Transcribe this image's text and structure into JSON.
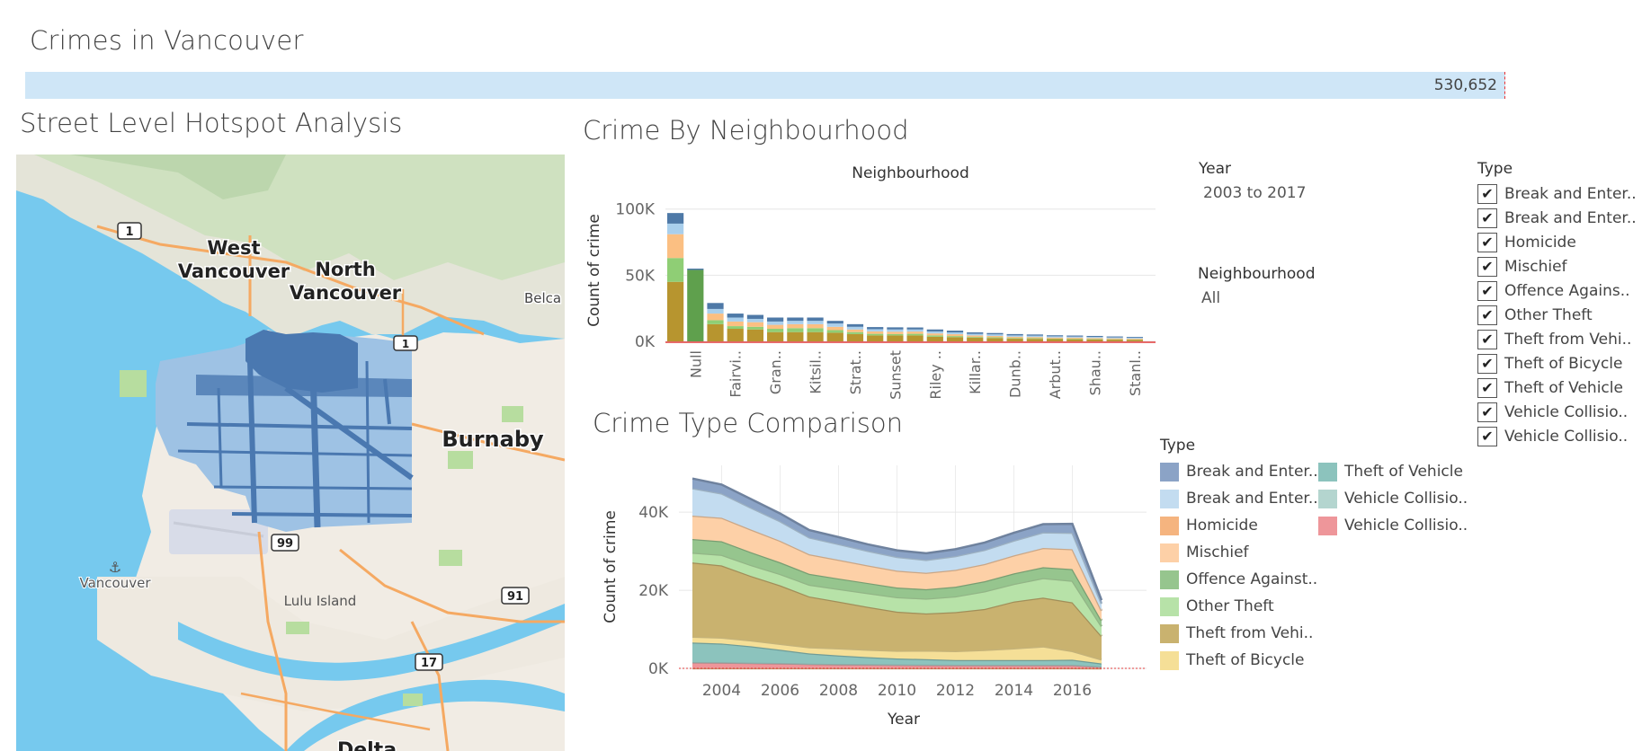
{
  "dashboard": {
    "title": "Crimes in Vancouver",
    "total": "530,652"
  },
  "map_panel": {
    "title": "Street Level Hotspot Analysis",
    "labels": {
      "west_vancouver_1": "West",
      "west_vancouver_2": "Vancouver",
      "north_vancouver_1": "North",
      "north_vancouver_2": "Vancouver",
      "burnaby": "Burnaby",
      "belcarra": "Belca",
      "vancouver_airport": "Vancouver",
      "lulu_island": "Lulu Island",
      "delta": "Delta"
    },
    "highway_shields": [
      "1",
      "99",
      "91",
      "17",
      "1"
    ]
  },
  "colors": {
    "break_and_enter_commercial": "#8ba3c6",
    "break_and_enter_residential": "#c3dcf0",
    "homicide": "#f5b47f",
    "mischief": "#fdd0a7",
    "offence_against_person": "#96c58e",
    "other_theft": "#b7e2a8",
    "theft_from_vehicle": "#c9b26f",
    "theft_of_bicycle": "#f5df97",
    "theft_of_vehicle": "#8cc3bd",
    "vehicle_collision_fatal": "#b4d5cf",
    "vehicle_collision_injury": "#ee969a",
    "water": "#76c9ee",
    "land": "#f1ece4",
    "crime_points": "#4a78b0"
  },
  "filters": {
    "year": {
      "label": "Year",
      "value": "2003 to 2017"
    },
    "neighbourhood": {
      "label": "Neighbourhood",
      "value": "All"
    },
    "type": {
      "label": "Type",
      "items": [
        "Break and Enter..",
        "Break and Enter..",
        "Homicide",
        "Mischief",
        "Offence Agains..",
        "Other Theft",
        "Theft from Vehi..",
        "Theft of Bicycle",
        "Theft of Vehicle",
        "Vehicle Collisio..",
        "Vehicle Collisio.."
      ]
    }
  },
  "legend": {
    "label": "Type",
    "items": [
      "Break and Enter..",
      "Break and Enter..",
      "Homicide",
      "Mischief",
      "Offence Against..",
      "Other Theft",
      "Theft from Vehi..",
      "Theft of Bicycle",
      "Theft of Vehicle",
      "Vehicle Collisio..",
      "Vehicle Collisio.."
    ]
  },
  "chart_data": [
    {
      "type": "bar",
      "stacked": true,
      "title": "Crime By Neighbourhood",
      "subtitle": "Neighbourhood",
      "ylabel": "Count of crime",
      "ylim": [
        0,
        110000
      ],
      "yticks": [
        "100K",
        "50K",
        "0K"
      ],
      "ytick_values": [
        100000,
        50000,
        0
      ],
      "grid": true,
      "categories": [
        "",
        "Null",
        "",
        "Fairvi..",
        "",
        "Gran..",
        "",
        "Kitsil..",
        "",
        "Strat..",
        "",
        "Sunset",
        "",
        "Riley ..",
        "",
        "Killar..",
        "",
        "Dunb..",
        "",
        "Arbut..",
        "",
        "Shau..",
        "",
        "Stanl.."
      ],
      "series": [
        {
          "name": "Theft from Vehi..",
          "color": "#b7952f",
          "values": [
            45000,
            0,
            13000,
            9500,
            9000,
            7000,
            7000,
            7000,
            6500,
            5500,
            4500,
            4500,
            4500,
            3500,
            3200,
            2700,
            2500,
            2000,
            1900,
            1700,
            1600,
            1500,
            1300,
            1200
          ]
        },
        {
          "name": "Offence Against..",
          "color": "#5fa04d",
          "values": [
            0,
            54000,
            0,
            0,
            0,
            0,
            0,
            0,
            0,
            0,
            0,
            0,
            0,
            0,
            0,
            0,
            0,
            0,
            0,
            0,
            0,
            0,
            0,
            0
          ]
        },
        {
          "name": "Other Theft",
          "color": "#8fce75",
          "values": [
            18000,
            0,
            3000,
            2000,
            2000,
            2500,
            3000,
            3000,
            2000,
            1500,
            1200,
            1000,
            1200,
            1000,
            800,
            600,
            600,
            500,
            500,
            400,
            400,
            400,
            300,
            300
          ]
        },
        {
          "name": "Mischief",
          "color": "#fbbf82",
          "values": [
            18000,
            0,
            5000,
            3500,
            3500,
            3000,
            3000,
            3000,
            2500,
            2000,
            1800,
            1800,
            1700,
            1500,
            1400,
            1200,
            1000,
            1000,
            900,
            800,
            800,
            700,
            700,
            600
          ]
        },
        {
          "name": "Break and Enter..",
          "color": "#a9cfec",
          "values": [
            8000,
            0,
            3500,
            3000,
            2500,
            2500,
            2500,
            2500,
            2500,
            2000,
            1700,
            1700,
            1600,
            1500,
            1400,
            1200,
            1200,
            1000,
            1000,
            900,
            800,
            800,
            700,
            700
          ]
        },
        {
          "name": "Break and Enter..",
          "color": "#4e79a7",
          "values": [
            8000,
            1000,
            4500,
            3000,
            3000,
            3000,
            2500,
            2500,
            2000,
            2000,
            1600,
            1600,
            1500,
            1500,
            1300,
            1100,
            1000,
            1000,
            900,
            800,
            800,
            700,
            700,
            600
          ]
        }
      ]
    },
    {
      "type": "area",
      "stacked": true,
      "title": "Crime Type Comparison",
      "xlabel": "Year",
      "ylabel": "Count of crime",
      "x": [
        2003,
        2004,
        2005,
        2006,
        2007,
        2008,
        2009,
        2010,
        2011,
        2012,
        2013,
        2014,
        2015,
        2016,
        2017
      ],
      "xticks": [
        2004,
        2006,
        2008,
        2010,
        2012,
        2014,
        2016
      ],
      "ylim": [
        0,
        52000
      ],
      "yticks": [
        "40K",
        "20K",
        "0K"
      ],
      "ytick_values": [
        40000,
        20000,
        0
      ],
      "grid": true,
      "series": [
        {
          "name": "Homicide",
          "color": "#f5b47f",
          "values": [
            20,
            20,
            20,
            20,
            20,
            20,
            20,
            20,
            20,
            20,
            20,
            20,
            20,
            20,
            10
          ]
        },
        {
          "name": "Vehicle Collisio..",
          "color": "#ee969a",
          "values": [
            1500,
            1450,
            1350,
            1250,
            1100,
            1000,
            950,
            900,
            850,
            800,
            800,
            800,
            800,
            800,
            400
          ]
        },
        {
          "name": "Vehicle Collisio..",
          "color": "#b4d5cf",
          "values": [
            100,
            100,
            100,
            100,
            100,
            100,
            100,
            100,
            100,
            100,
            100,
            100,
            100,
            100,
            50
          ]
        },
        {
          "name": "Theft of Vehicle",
          "color": "#8cc3bd",
          "values": [
            5000,
            4800,
            4200,
            3400,
            2600,
            2200,
            1800,
            1500,
            1400,
            1200,
            1200,
            1200,
            1200,
            1300,
            800
          ]
        },
        {
          "name": "Theft of Bicycle",
          "color": "#f5df97",
          "values": [
            1500,
            1500,
            1500,
            1500,
            1600,
            1800,
            1900,
            2000,
            2200,
            2300,
            2600,
            3000,
            3500,
            2200,
            1000
          ]
        },
        {
          "name": "Theft from Vehi..",
          "color": "#c9b26f",
          "values": [
            19000,
            18500,
            16500,
            15000,
            13000,
            12000,
            11000,
            10000,
            9500,
            10000,
            10500,
            12000,
            12500,
            12500,
            6000
          ]
        },
        {
          "name": "Other Theft",
          "color": "#b7e2a8",
          "values": [
            2500,
            2700,
            2800,
            2900,
            3000,
            3200,
            3500,
            3700,
            3800,
            4000,
            4500,
            4500,
            5000,
            5500,
            2500
          ]
        },
        {
          "name": "Offence Against..",
          "color": "#96c58e",
          "values": [
            3500,
            3500,
            3300,
            3000,
            2800,
            2700,
            2600,
            2500,
            2400,
            2500,
            2600,
            2700,
            2800,
            3000,
            1500
          ]
        },
        {
          "name": "Mischief",
          "color": "#fdd0a7",
          "values": [
            6000,
            6000,
            5800,
            5500,
            5000,
            4800,
            4500,
            4300,
            4200,
            4300,
            4400,
            4600,
            4900,
            5100,
            2500
          ]
        },
        {
          "name": "Break and Enter..",
          "color": "#c3dcf0",
          "values": [
            7000,
            6200,
            5600,
            5000,
            4300,
            4000,
            3700,
            3500,
            3300,
            3500,
            3600,
            3800,
            4000,
            4200,
            1800
          ]
        },
        {
          "name": "Break and Enter..",
          "color": "#8ba3c6",
          "values": [
            2500,
            2300,
            2200,
            2000,
            1900,
            1800,
            1700,
            1700,
            1700,
            1800,
            1900,
            2000,
            2100,
            2300,
            900
          ]
        }
      ]
    }
  ]
}
